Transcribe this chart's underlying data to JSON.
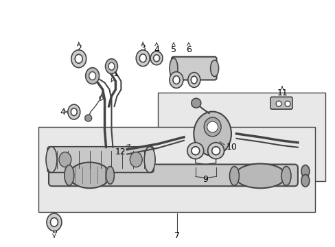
{
  "bg_color": "#ffffff",
  "line_color": "#444444",
  "gray_fill": "#d8d8d8",
  "mid_gray": "#bbbbbb",
  "dark_gray": "#888888",
  "box_fill": "#e8e8e8",
  "figsize": [
    4.89,
    3.6
  ],
  "dpi": 100,
  "label_fs": 9,
  "label_color": "#000000"
}
